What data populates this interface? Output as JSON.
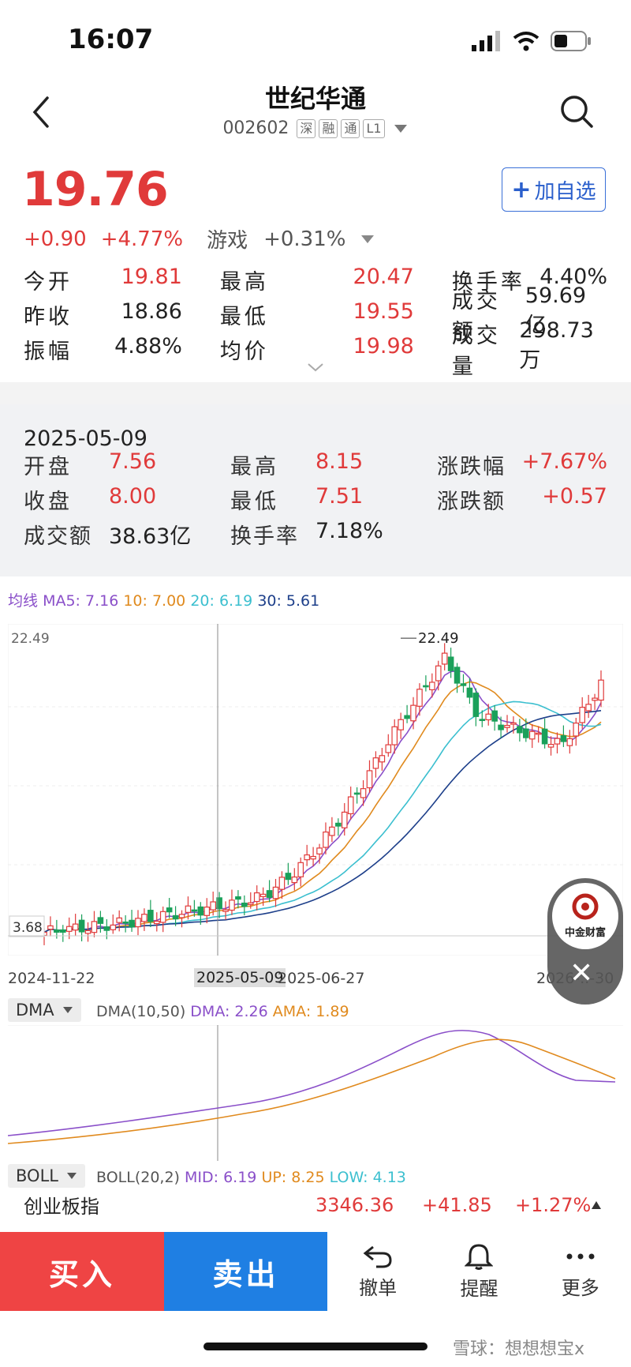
{
  "status": {
    "time": "16:07"
  },
  "nav": {
    "title": "世纪华通",
    "code": "002602",
    "tags": [
      "深",
      "融",
      "通",
      "L1"
    ]
  },
  "quote": {
    "price": "19.76",
    "change": "+0.90",
    "change_pct": "+4.77%",
    "sector_name": "游戏",
    "sector_change": "+0.31%",
    "add_watch_label": "加自选"
  },
  "stats": [
    [
      {
        "label": "今开",
        "value": "19.81",
        "color": "red"
      },
      {
        "label": "最高",
        "value": "20.47",
        "color": "red"
      },
      {
        "label": "换手率",
        "value": "4.40%",
        "color": "blk"
      }
    ],
    [
      {
        "label": "昨收",
        "value": "18.86",
        "color": "blk"
      },
      {
        "label": "最低",
        "value": "19.55",
        "color": "red"
      },
      {
        "label": "成交额",
        "value": "59.69亿",
        "color": "blk"
      }
    ],
    [
      {
        "label": "振幅",
        "value": "4.88%",
        "color": "blk"
      },
      {
        "label": "均价",
        "value": "19.98",
        "color": "red"
      },
      {
        "label": "成交量",
        "value": "298.73万",
        "color": "blk"
      }
    ]
  ],
  "popup": {
    "date": "2025-05-09",
    "rows": [
      [
        {
          "label": "开盘",
          "value": "7.56",
          "color": "red"
        },
        {
          "label": "最高",
          "value": "8.15",
          "color": "red"
        },
        {
          "label": "涨跌幅",
          "value": "+7.67%",
          "color": "red"
        }
      ],
      [
        {
          "label": "收盘",
          "value": "8.00",
          "color": "red"
        },
        {
          "label": "最低",
          "value": "7.51",
          "color": "red"
        },
        {
          "label": "涨跌额",
          "value": "+0.57",
          "color": "red"
        }
      ],
      [
        {
          "label": "成交额",
          "value": "38.63亿",
          "color": "blk"
        },
        {
          "label": "换手率",
          "value": "7.18%",
          "color": "blk"
        },
        null
      ]
    ]
  },
  "ma": {
    "label": "均线",
    "ma5": "MA5: 7.16",
    "ma10": "10: 7.00",
    "ma20": "20: 6.19",
    "ma30": "30: 5.61"
  },
  "chart_data": {
    "type": "candlestick",
    "y_high_label": "22.49",
    "y_low_label": "3.68",
    "peak_label": "22.49",
    "x_labels": [
      "2024-11-22",
      "2025-05-09",
      "2025-06-27",
      "2026-..-30"
    ],
    "crosshair_date": "2025-05-09",
    "ylim": [
      3.68,
      22.49
    ],
    "colors": {
      "up": "#e03a3a",
      "down": "#1aa05a",
      "ma5": "#8a4fc9",
      "ma10": "#e08a1e",
      "ma20": "#3bbfcf",
      "ma30": "#1d3f8a"
    }
  },
  "dma": {
    "selector": "DMA",
    "params": "DMA(10,50)",
    "dma": "DMA: 2.26",
    "ama": "AMA: 1.89"
  },
  "boll": {
    "selector": "BOLL",
    "params": "BOLL(20,2)",
    "mid": "MID: 6.19",
    "up": "UP: 8.25",
    "low": "LOW: 4.13"
  },
  "index": {
    "name": "创业板指",
    "value": "3346.36",
    "change": "+41.85",
    "pct": "+1.27%"
  },
  "bottom": {
    "buy": "买入",
    "sell": "卖出",
    "cancel": "撤单",
    "alert": "提醒",
    "more": "更多"
  },
  "ad": {
    "brand": "中金财富"
  },
  "watermark": "雪球：想想想宝x"
}
